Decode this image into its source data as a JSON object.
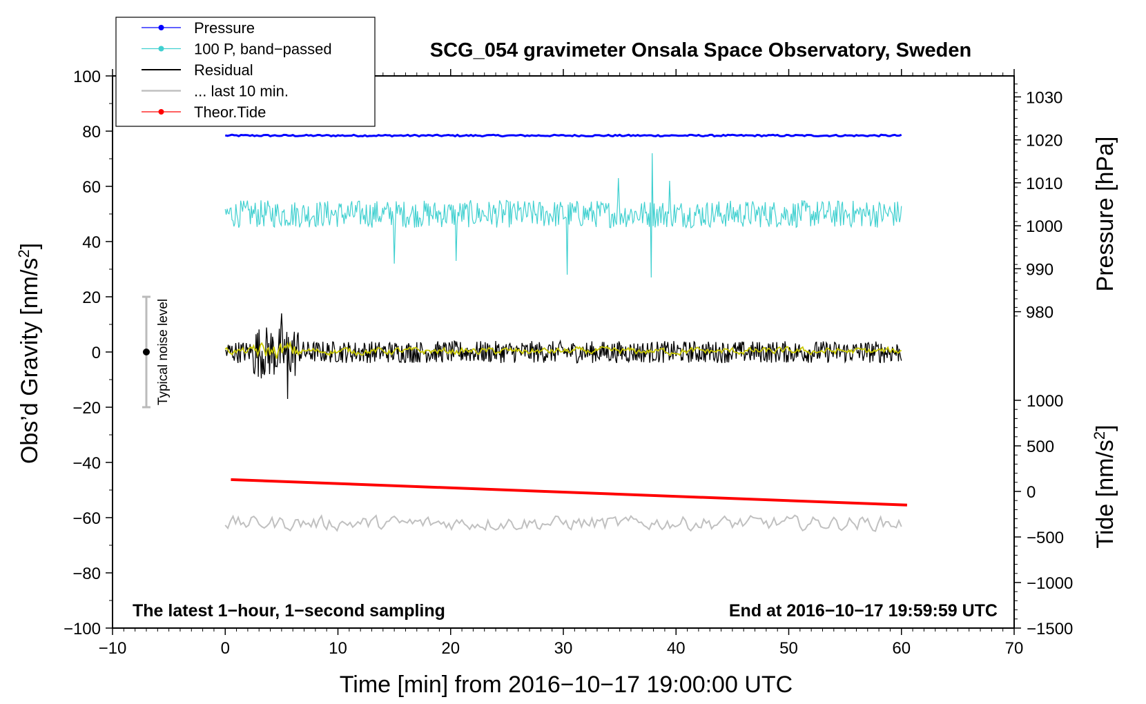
{
  "chart_data": {
    "type": "line",
    "title": "SCG_054 gravimeter Onsala Space Observatory, Sweden",
    "xlabel": "Time [min] from 2016−10−17 19:00:00 UTC",
    "ylabel_left": "Obs’d Gravity [nm/s",
    "ylabel_left_sup": "2",
    "ylabel_left_end": "]",
    "ylabel_pressure": "Pressure [hPa]",
    "ylabel_tide": "Tide [nm/s",
    "ylabel_tide_sup": "2",
    "ylabel_tide_end": "]",
    "xlim": [
      -10,
      70
    ],
    "ylim_left": [
      -100,
      100
    ],
    "x_ticks": [
      "−10",
      "0",
      "10",
      "20",
      "30",
      "40",
      "50",
      "60",
      "70"
    ],
    "x_tick_values": [
      -10,
      0,
      10,
      20,
      30,
      40,
      50,
      60,
      70
    ],
    "y_left_ticks": [
      "100",
      "80",
      "60",
      "40",
      "20",
      "0",
      "−20",
      "−40",
      "−60",
      "−80",
      "−100"
    ],
    "y_left_tick_values": [
      100,
      80,
      60,
      40,
      20,
      0,
      -20,
      -40,
      -60,
      -80,
      -100
    ],
    "pressure_ticks": [
      "1030",
      "1020",
      "1010",
      "1000",
      "990",
      "980"
    ],
    "pressure_tick_values": [
      1030,
      1020,
      1010,
      1000,
      990,
      980
    ],
    "pressure_mapping": {
      "hpa": [
        980,
        1030
      ],
      "gravity_units": [
        14.6,
        92.4
      ]
    },
    "tide_ticks": [
      "1000",
      "500",
      "0",
      "−500",
      "−1000",
      "−1500"
    ],
    "tide_tick_values": [
      1000,
      500,
      0,
      -500,
      -1000,
      -1500
    ],
    "tide_mapping": {
      "nm_s2": [
        -1500,
        1000
      ],
      "gravity_units": [
        -100,
        -17.5
      ]
    },
    "annotation_left": "The latest 1−hour, 1−second sampling",
    "annotation_right": "End at 2016−10−17 19:59:59 UTC",
    "noise_label": "Typical noise level",
    "noise_bar": {
      "x": -7,
      "center": 0,
      "low": -20,
      "high": 20
    },
    "series": [
      {
        "name": "Pressure",
        "color": "#0000ff",
        "marker": true,
        "kind": "pressure",
        "pressure_hpa": 1021.0,
        "x_range": [
          0,
          60
        ]
      },
      {
        "name": "100 P, band−passed",
        "color": "#40d0d0",
        "marker": true,
        "kind": "noise",
        "center": 50,
        "amplitude": 5,
        "spikes": [
          [
            15,
            32
          ],
          [
            20.5,
            33
          ],
          [
            30.3,
            28
          ],
          [
            37.8,
            27
          ],
          [
            37.9,
            72
          ],
          [
            34.9,
            63
          ],
          [
            39.4,
            62
          ]
        ],
        "x_range": [
          0,
          60
        ]
      },
      {
        "name": "Residual",
        "color": "#000000",
        "marker": false,
        "kind": "noise",
        "center": 0,
        "amplitude": 4,
        "burst": [
          [
            5,
            14
          ],
          [
            5.5,
            -17
          ]
        ],
        "x_range": [
          0,
          60
        ]
      },
      {
        "name": "... last 10 min.",
        "color": "#c0c0c0",
        "marker": false,
        "kind": "noise",
        "center": -62,
        "amplitude": 3.5,
        "x_range": [
          0,
          60
        ]
      },
      {
        "name": "Theor.Tide",
        "color": "#ff0000",
        "marker": true,
        "kind": "tide",
        "x": [
          0.5,
          60.5
        ],
        "tide_nm_s2": [
          130,
          -150
        ]
      },
      {
        "name": "smoothed",
        "color": "#c8c800",
        "marker": false,
        "kind": "smooth",
        "center": 0.3,
        "amplitude": 1.2,
        "x_range": [
          0,
          60
        ],
        "legend": false
      }
    ],
    "legend_position": "top-left",
    "grid": false
  }
}
